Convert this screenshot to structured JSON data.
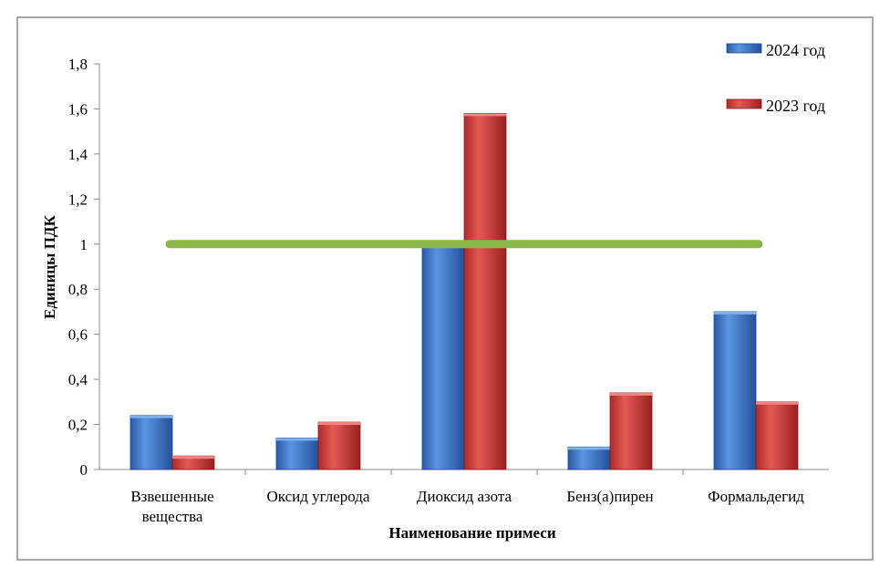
{
  "chart_data": {
    "type": "bar",
    "title": "",
    "xlabel": "Наименование примеси",
    "ylabel": "Единицы ПДК",
    "ylim": [
      0,
      1.8
    ],
    "yticks": [
      0,
      0.2,
      0.4,
      0.6,
      0.8,
      1,
      1.2,
      1.4,
      1.6,
      1.8
    ],
    "ytick_labels": [
      "0",
      "0,2",
      "0,4",
      "0,6",
      "0,8",
      "1",
      "1,2",
      "1,4",
      "1,6",
      "1,8"
    ],
    "categories": [
      [
        "Взвешенные",
        "вещества"
      ],
      [
        "Оксид углерода"
      ],
      [
        "Диоксид азота"
      ],
      [
        "Бенз(а)пирен"
      ],
      [
        "Формальдегид"
      ]
    ],
    "series": [
      {
        "name": "2024 год",
        "color": "#3a78d0",
        "values": [
          0.24,
          0.14,
          1.0,
          0.1,
          0.7
        ]
      },
      {
        "name": "2023 год",
        "color": "#d63c3c",
        "values": [
          0.06,
          0.21,
          1.58,
          0.34,
          0.3
        ]
      }
    ],
    "reference_line": {
      "value": 1,
      "color": "#8cb84a"
    },
    "legend_position": "top-right",
    "grid": false
  }
}
